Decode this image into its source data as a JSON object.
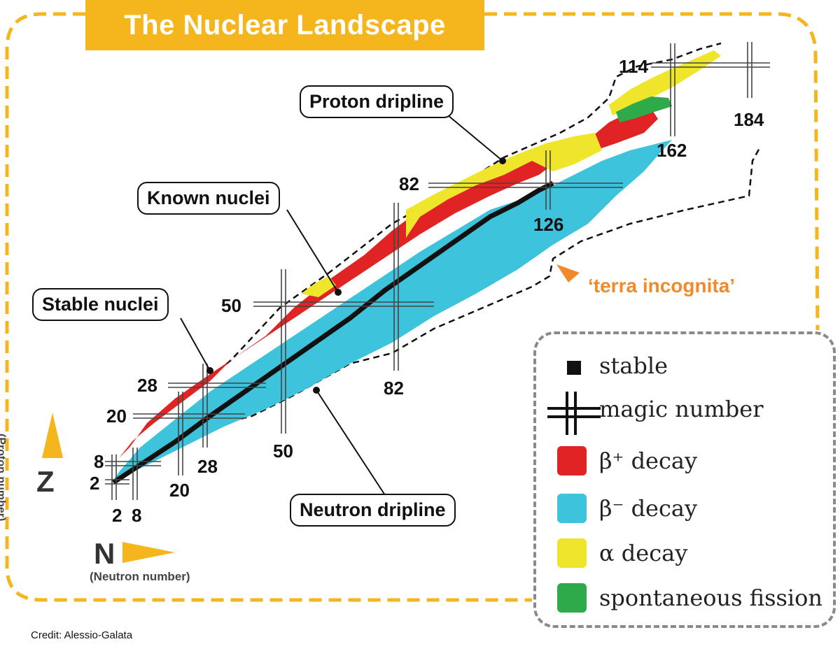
{
  "title": "The Nuclear Landscape",
  "callouts": {
    "proton_dripline": "Proton dripline",
    "known_nuclei": "Known nuclei",
    "stable_nuclei": "Stable nuclei",
    "neutron_dripline": "Neutron dripline"
  },
  "terra_incognita": "‘terra incognita’",
  "magic_numbers": {
    "proton": [
      "2",
      "8",
      "20",
      "28",
      "50",
      "82",
      "114"
    ],
    "neutron": [
      "2",
      "8",
      "20",
      "28",
      "50",
      "82",
      "126",
      "162",
      "184"
    ]
  },
  "axes": {
    "z_symbol": "Z",
    "z_label": "(Proton number)",
    "n_symbol": "N",
    "n_label": "(Neutron number)"
  },
  "legend": {
    "stable": "stable",
    "magic": "magic number",
    "beta_plus": "β⁺ decay",
    "beta_minus": "β⁻ decay",
    "alpha": "α decay",
    "fission": "spontaneous fission"
  },
  "colors": {
    "accent": "#f5b51c",
    "stable": "#111111",
    "beta_plus": "#e02323",
    "beta_minus": "#3ec3dc",
    "alpha": "#efe52a",
    "fission": "#2faa4a",
    "terra": "#f08a2a"
  },
  "credit": "Credit: Alessio-Galata"
}
